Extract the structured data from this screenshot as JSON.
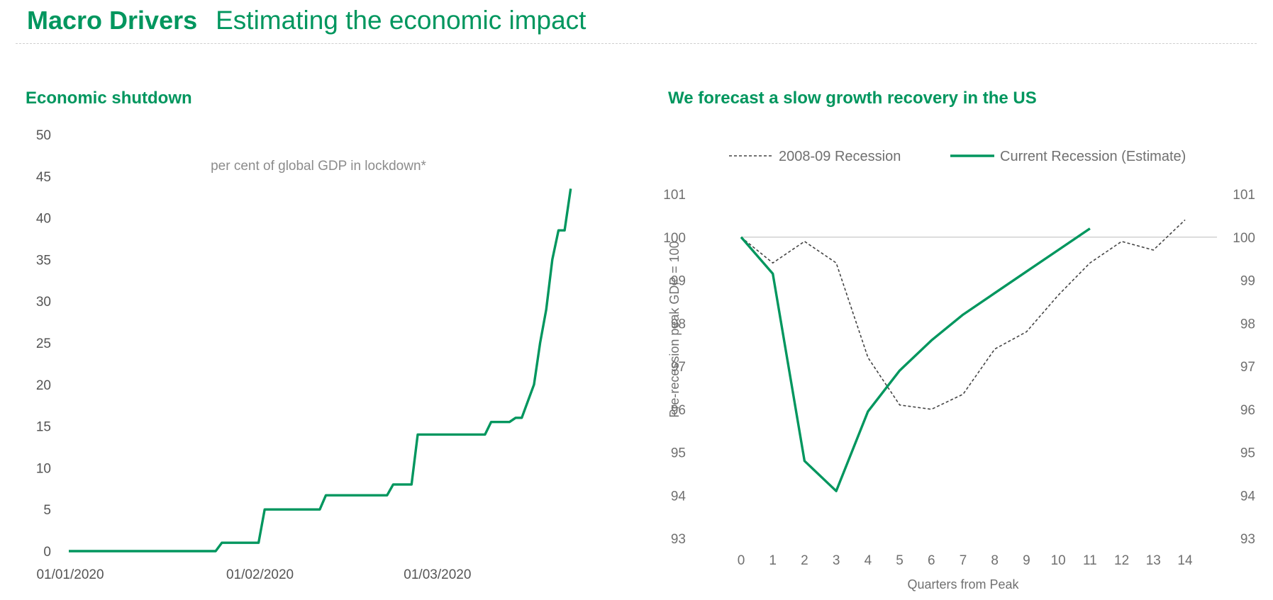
{
  "header": {
    "title": "Macro Drivers",
    "subtitle": "Estimating the economic impact"
  },
  "chart_data": [
    {
      "type": "line",
      "title": "Economic shutdown",
      "annotation": "per cent of global GDP in lockdown*",
      "xlabel": "",
      "ylabel": "",
      "ylim": [
        0,
        50
      ],
      "yticks": [
        0,
        5,
        10,
        15,
        20,
        25,
        30,
        35,
        40,
        45,
        50
      ],
      "xlim": [
        "2020-01-01",
        "2020-03-25"
      ],
      "xticks": [
        {
          "date": "2020-01-01",
          "label": "01/01/2020"
        },
        {
          "date": "2020-02-01",
          "label": "01/02/2020"
        },
        {
          "date": "2020-03-01",
          "label": "01/03/2020"
        }
      ],
      "grid": false,
      "color": "#00965e",
      "series": [
        {
          "name": "",
          "points": [
            [
              "2020-01-01",
              0
            ],
            [
              "2020-01-25",
              0
            ],
            [
              "2020-01-26",
              1
            ],
            [
              "2020-02-01",
              1
            ],
            [
              "2020-02-02",
              5
            ],
            [
              "2020-02-11",
              5
            ],
            [
              "2020-02-12",
              6.7
            ],
            [
              "2020-02-22",
              6.7
            ],
            [
              "2020-02-23",
              8
            ],
            [
              "2020-02-26",
              8
            ],
            [
              "2020-02-27",
              14
            ],
            [
              "2020-03-09",
              14
            ],
            [
              "2020-03-10",
              15.5
            ],
            [
              "2020-03-13",
              15.5
            ],
            [
              "2020-03-14",
              16
            ],
            [
              "2020-03-15",
              16
            ],
            [
              "2020-03-17",
              20
            ],
            [
              "2020-03-18",
              25
            ],
            [
              "2020-03-19",
              29
            ],
            [
              "2020-03-20",
              35
            ],
            [
              "2020-03-21",
              38.5
            ],
            [
              "2020-03-22",
              38.5
            ],
            [
              "2020-03-23",
              43.5
            ]
          ]
        }
      ]
    },
    {
      "type": "line",
      "title": "We forecast a slow growth recovery in the US",
      "xlabel": "Quarters from Peak",
      "ylabel": "Pre-recession peak GDP = 100",
      "ylim": [
        93,
        101
      ],
      "yticks": [
        93,
        94,
        95,
        96,
        97,
        98,
        99,
        100,
        101
      ],
      "xlim": [
        0,
        14
      ],
      "xticks": [
        0,
        1,
        2,
        3,
        4,
        5,
        6,
        7,
        8,
        9,
        10,
        11,
        12,
        13,
        14
      ],
      "reference_line": 100,
      "legend": "top",
      "series": [
        {
          "name": "2008-09 Recession",
          "style": "dashed",
          "color": "#444444",
          "x": [
            0,
            1,
            2,
            3,
            4,
            5,
            6,
            7,
            8,
            9,
            10,
            11,
            12,
            13,
            14
          ],
          "values": [
            100,
            99.4,
            99.9,
            99.4,
            97.2,
            96.1,
            96.0,
            96.35,
            97.4,
            97.8,
            98.65,
            99.4,
            99.9,
            99.7,
            100.4
          ]
        },
        {
          "name": "Current Recession (Estimate)",
          "style": "solid",
          "color": "#00965e",
          "x": [
            0,
            1,
            2,
            3,
            4,
            5,
            6,
            7,
            8,
            9,
            10,
            11
          ],
          "values": [
            100,
            99.15,
            94.8,
            94.1,
            95.95,
            96.9,
            97.6,
            98.2,
            98.7,
            99.2,
            99.7,
            100.2
          ]
        }
      ]
    }
  ]
}
